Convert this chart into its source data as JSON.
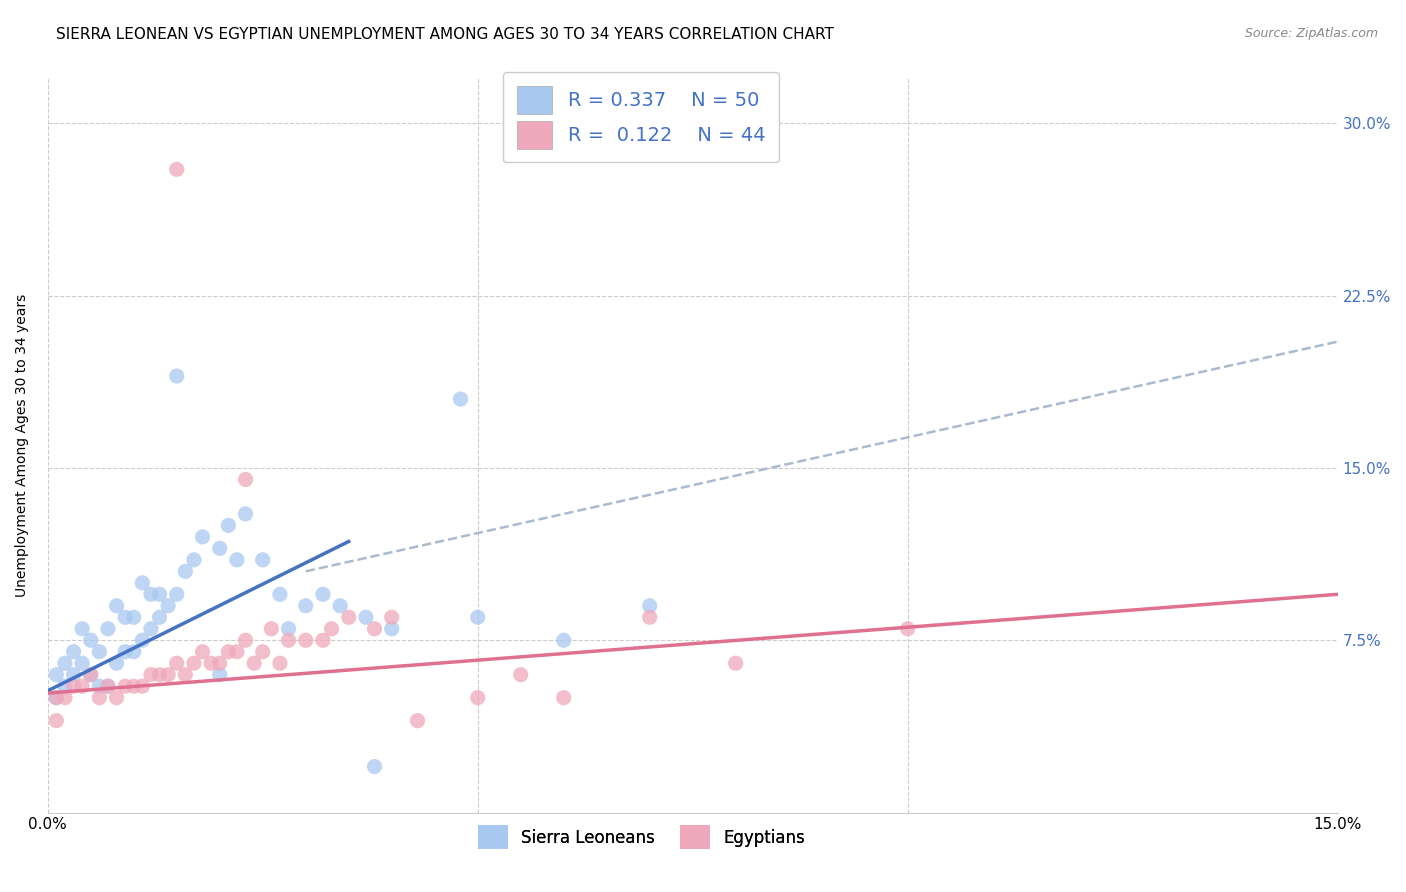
{
  "title": "SIERRA LEONEAN VS EGYPTIAN UNEMPLOYMENT AMONG AGES 30 TO 34 YEARS CORRELATION CHART",
  "source": "Source: ZipAtlas.com",
  "ylabel": "Unemployment Among Ages 30 to 34 years",
  "xlim": [
    0.0,
    0.15
  ],
  "ylim": [
    0.0,
    0.32
  ],
  "sl_color": "#A8C8F0",
  "eg_color": "#F0A8BC",
  "sl_line_color": "#4472C4",
  "eg_line_color": "#E07090",
  "dashed_line_color": "#AABBD0",
  "R_sl": 0.337,
  "N_sl": 50,
  "R_eg": 0.122,
  "N_eg": 44,
  "sl_scatter_x": [
    0.001,
    0.001,
    0.002,
    0.002,
    0.003,
    0.003,
    0.004,
    0.004,
    0.005,
    0.005,
    0.006,
    0.006,
    0.007,
    0.007,
    0.008,
    0.008,
    0.009,
    0.009,
    0.01,
    0.01,
    0.011,
    0.011,
    0.012,
    0.012,
    0.013,
    0.013,
    0.014,
    0.015,
    0.016,
    0.017,
    0.018,
    0.02,
    0.021,
    0.022,
    0.023,
    0.025,
    0.027,
    0.028,
    0.03,
    0.032,
    0.034,
    0.037,
    0.04,
    0.048,
    0.05,
    0.06,
    0.07,
    0.038,
    0.015,
    0.02
  ],
  "sl_scatter_y": [
    0.05,
    0.06,
    0.055,
    0.065,
    0.06,
    0.07,
    0.065,
    0.08,
    0.06,
    0.075,
    0.055,
    0.07,
    0.055,
    0.08,
    0.065,
    0.09,
    0.07,
    0.085,
    0.07,
    0.085,
    0.075,
    0.1,
    0.08,
    0.095,
    0.085,
    0.095,
    0.09,
    0.095,
    0.105,
    0.11,
    0.12,
    0.115,
    0.125,
    0.11,
    0.13,
    0.11,
    0.095,
    0.08,
    0.09,
    0.095,
    0.09,
    0.085,
    0.08,
    0.18,
    0.085,
    0.075,
    0.09,
    0.02,
    0.19,
    0.06
  ],
  "eg_scatter_x": [
    0.001,
    0.001,
    0.002,
    0.003,
    0.004,
    0.005,
    0.006,
    0.007,
    0.008,
    0.009,
    0.01,
    0.011,
    0.012,
    0.013,
    0.014,
    0.015,
    0.016,
    0.017,
    0.018,
    0.019,
    0.02,
    0.021,
    0.022,
    0.023,
    0.024,
    0.025,
    0.026,
    0.027,
    0.028,
    0.03,
    0.032,
    0.033,
    0.035,
    0.038,
    0.04,
    0.043,
    0.05,
    0.055,
    0.06,
    0.07,
    0.08,
    0.1,
    0.023,
    0.015
  ],
  "eg_scatter_y": [
    0.04,
    0.05,
    0.05,
    0.055,
    0.055,
    0.06,
    0.05,
    0.055,
    0.05,
    0.055,
    0.055,
    0.055,
    0.06,
    0.06,
    0.06,
    0.065,
    0.06,
    0.065,
    0.07,
    0.065,
    0.065,
    0.07,
    0.07,
    0.075,
    0.065,
    0.07,
    0.08,
    0.065,
    0.075,
    0.075,
    0.075,
    0.08,
    0.085,
    0.08,
    0.085,
    0.04,
    0.05,
    0.06,
    0.05,
    0.085,
    0.065,
    0.08,
    0.145,
    0.28
  ],
  "background_color": "#FFFFFF",
  "grid_color": "#CCCCCC",
  "title_fontsize": 11,
  "axis_label_fontsize": 10,
  "tick_fontsize": 11,
  "sl_line_x": [
    0.0,
    0.035
  ],
  "sl_line_y": [
    0.053,
    0.118
  ],
  "eg_line_x": [
    0.0,
    0.15
  ],
  "eg_line_y": [
    0.052,
    0.095
  ],
  "dashed_line_x": [
    0.03,
    0.15
  ],
  "dashed_line_y": [
    0.105,
    0.205
  ]
}
